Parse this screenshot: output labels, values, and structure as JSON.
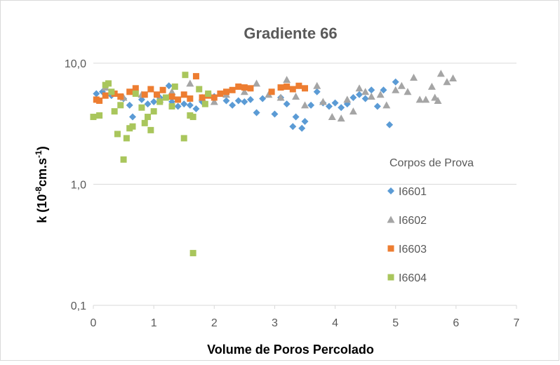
{
  "chart_data": {
    "type": "scatter",
    "title": "Gradiente 66",
    "xlabel": "Volume de Poros Percolado",
    "ylabel_parts": [
      "k (10",
      "-8",
      "cm.s",
      "-1",
      ")"
    ],
    "legend_title": "Corpos de Prova",
    "legend_position": "right",
    "ylog": true,
    "grid": true,
    "xlim": [
      0,
      7
    ],
    "xticks": [
      0,
      1,
      2,
      3,
      4,
      5,
      6,
      7
    ],
    "ylim": [
      0.1,
      10
    ],
    "yticks": [
      {
        "value": 0.1,
        "label": "0,1"
      },
      {
        "value": 1,
        "label": "1,0"
      },
      {
        "value": 10,
        "label": "10,0"
      }
    ],
    "series": [
      {
        "name": "I6601",
        "color": "#5b9bd5",
        "marker": "diamond",
        "x": [
          0.05,
          0.15,
          0.3,
          0.5,
          0.6,
          0.65,
          0.8,
          0.9,
          1.0,
          1.1,
          1.25,
          1.3,
          1.4,
          1.5,
          1.6,
          1.7,
          1.8,
          2.0,
          2.2,
          2.3,
          2.4,
          2.5,
          2.6,
          2.7,
          2.8,
          3.0,
          3.1,
          3.2,
          3.3,
          3.35,
          3.45,
          3.5,
          3.6,
          3.7,
          3.8,
          3.9,
          4.0,
          4.1,
          4.2,
          4.3,
          4.4,
          4.5,
          4.6,
          4.7,
          4.8,
          4.9,
          5.0
        ],
        "values": [
          5.6,
          5.8,
          5.4,
          5.1,
          4.5,
          3.6,
          5.0,
          4.6,
          4.8,
          5.2,
          6.5,
          4.8,
          4.4,
          4.6,
          4.5,
          4.2,
          4.8,
          5.3,
          4.9,
          4.5,
          4.9,
          4.8,
          5.0,
          3.9,
          5.1,
          3.8,
          5.2,
          4.6,
          3.0,
          3.6,
          2.9,
          3.3,
          4.5,
          5.8,
          4.7,
          4.4,
          4.7,
          4.3,
          4.6,
          5.2,
          5.5,
          5.1,
          6.0,
          4.4,
          6.0,
          3.1,
          7.0
        ]
      },
      {
        "name": "I6602",
        "color": "#a5a5a5",
        "marker": "triangle",
        "x": [
          0.2,
          0.5,
          0.8,
          1.1,
          1.3,
          1.6,
          1.8,
          2.0,
          2.2,
          2.5,
          2.7,
          2.9,
          3.1,
          3.2,
          3.35,
          3.5,
          3.7,
          3.8,
          3.95,
          4.1,
          4.2,
          4.3,
          4.4,
          4.5,
          4.6,
          4.75,
          4.85,
          5.0,
          5.1,
          5.2,
          5.3,
          5.4,
          5.5,
          5.6,
          5.65,
          5.7,
          5.75,
          5.85,
          5.95
        ],
        "values": [
          6.3,
          5.2,
          5.5,
          5.0,
          5.8,
          6.8,
          5.2,
          4.8,
          5.5,
          5.8,
          6.8,
          5.5,
          5.2,
          7.3,
          5.3,
          4.5,
          6.5,
          4.8,
          3.6,
          3.5,
          5.0,
          4.0,
          6.2,
          5.8,
          5.3,
          5.5,
          4.5,
          6.0,
          6.5,
          5.8,
          7.6,
          5.0,
          5.0,
          6.4,
          5.2,
          4.9,
          8.2,
          7.0,
          7.5
        ]
      },
      {
        "name": "I6603",
        "color": "#ed7d31",
        "marker": "square",
        "x": [
          0.05,
          0.1,
          0.2,
          0.35,
          0.45,
          0.6,
          0.7,
          0.85,
          0.95,
          1.05,
          1.15,
          1.3,
          1.4,
          1.5,
          1.6,
          1.7,
          1.8,
          1.9,
          2.0,
          2.1,
          2.2,
          2.3,
          2.4,
          2.5,
          2.6,
          2.95,
          3.1,
          3.2,
          3.3,
          3.4,
          3.5
        ],
        "values": [
          5.0,
          4.9,
          5.4,
          5.6,
          5.3,
          5.8,
          6.2,
          5.5,
          6.1,
          5.5,
          6.0,
          5.3,
          5.0,
          5.5,
          5.1,
          7.8,
          5.2,
          5.4,
          5.2,
          5.6,
          5.8,
          6.0,
          6.4,
          6.3,
          6.2,
          5.8,
          6.3,
          6.4,
          6.1,
          6.5,
          6.2
        ]
      },
      {
        "name": "I6604",
        "color": "#a9c65c",
        "marker": "square",
        "x": [
          0.0,
          0.1,
          0.2,
          0.25,
          0.3,
          0.35,
          0.4,
          0.45,
          0.5,
          0.55,
          0.6,
          0.65,
          0.7,
          0.8,
          0.85,
          0.9,
          0.95,
          1.0,
          1.1,
          1.2,
          1.3,
          1.35,
          1.5,
          1.52,
          1.6,
          1.65,
          1.65,
          1.75,
          1.85,
          1.9
        ],
        "values": [
          3.6,
          3.7,
          6.6,
          6.8,
          5.8,
          4.0,
          2.6,
          4.5,
          1.6,
          2.4,
          2.9,
          3.0,
          5.6,
          4.3,
          3.2,
          3.6,
          2.8,
          4.0,
          4.8,
          5.2,
          4.4,
          6.4,
          2.4,
          8.0,
          3.7,
          3.6,
          0.27,
          6.1,
          4.6,
          5.6
        ]
      }
    ]
  }
}
